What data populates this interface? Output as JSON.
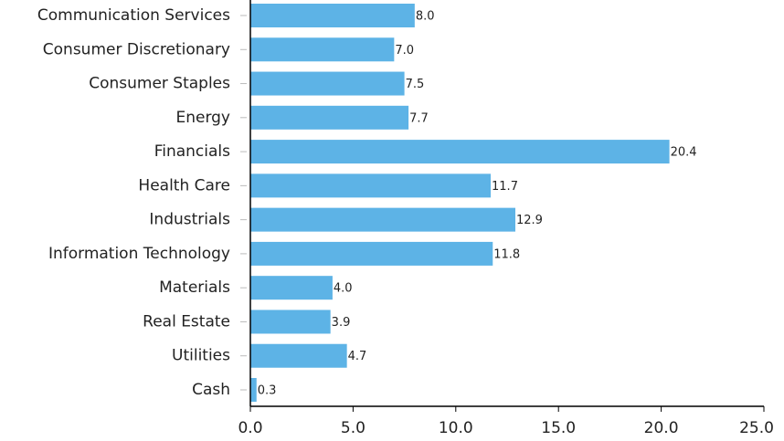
{
  "chart_data": {
    "type": "hbar",
    "categories": [
      "Communication Services",
      "Consumer Discretionary",
      "Consumer Staples",
      "Energy",
      "Financials",
      "Health Care",
      "Industrials",
      "Information Technology",
      "Materials",
      "Real Estate",
      "Utilities",
      "Cash"
    ],
    "values": [
      8.0,
      7.0,
      7.5,
      7.7,
      20.4,
      11.7,
      12.9,
      11.8,
      4.0,
      3.9,
      4.7,
      0.3
    ],
    "value_labels": [
      "8.0",
      "7.0",
      "7.5",
      "7.7",
      "20.4",
      "11.7",
      "12.9",
      "11.8",
      "4.0",
      "3.9",
      "4.7",
      "0.3"
    ],
    "color": "#5db3e6",
    "xlim": [
      0,
      25
    ],
    "xticks": [
      {
        "value": 0,
        "label": "0.0"
      },
      {
        "value": 5,
        "label": "5.0"
      },
      {
        "value": 10,
        "label": "10.0"
      },
      {
        "value": 15,
        "label": "15.0"
      },
      {
        "value": 20,
        "label": "20.0"
      },
      {
        "value": 25,
        "label": "25.0"
      }
    ]
  }
}
